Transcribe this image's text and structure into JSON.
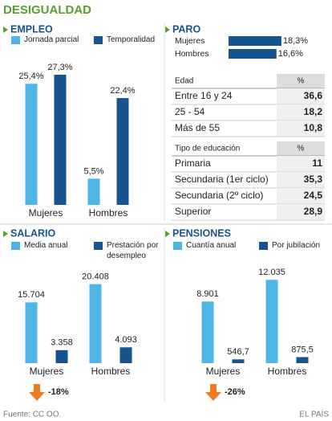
{
  "title": "DESIGUALDAD",
  "chart_data": [
    {
      "type": "bar",
      "title": "EMPLEO",
      "categories": [
        "Mujeres",
        "Hombres"
      ],
      "ylim": [
        0,
        30
      ],
      "series": [
        {
          "name": "Jornada parcial",
          "color": "#4db6e6",
          "values": [
            25.4,
            5.5
          ],
          "value_labels": [
            "25,4%",
            "5,5%"
          ]
        },
        {
          "name": "Temporalidad",
          "color": "#17538e",
          "values": [
            27.3,
            22.4
          ],
          "value_labels": [
            "27,3%",
            "22,4%"
          ]
        }
      ]
    },
    {
      "type": "hbar",
      "title": "PARO",
      "categories": [
        "Mujeres",
        "Hombres"
      ],
      "xlim": [
        0,
        20
      ],
      "color": "#17538e",
      "values": [
        18.3,
        16.6
      ],
      "value_labels": [
        "18,3%",
        "16,6%"
      ]
    },
    {
      "type": "bar",
      "title": "SALARIO",
      "categories": [
        "Mujeres",
        "Hombres"
      ],
      "ylim": [
        0,
        22000
      ],
      "annotation": "-18%",
      "series": [
        {
          "name": "Media anual",
          "color": "#4db6e6",
          "values": [
            15704,
            20408
          ],
          "value_labels": [
            "15.704",
            "20.408"
          ]
        },
        {
          "name": "Prestación por desempleo",
          "color": "#17538e",
          "values": [
            3358,
            4093
          ],
          "value_labels": [
            "3.358",
            "4.093"
          ]
        }
      ]
    },
    {
      "type": "bar",
      "title": "PENSIONES",
      "categories": [
        "Mujeres",
        "Hombres"
      ],
      "ylim": [
        0,
        13000
      ],
      "annotation": "-26%",
      "series": [
        {
          "name": "Cuantía anual",
          "color": "#4db6e6",
          "values": [
            8901,
            12035
          ],
          "value_labels": [
            "8.901",
            "12.035"
          ]
        },
        {
          "name": "Por jubilación",
          "color": "#17538e",
          "values": [
            546.7,
            875.5
          ],
          "value_labels": [
            "546,7",
            "875,5"
          ]
        }
      ]
    }
  ],
  "tables": [
    {
      "header": [
        "Edad",
        "%"
      ],
      "rows": [
        [
          "Entre 16 y 24",
          "36,6"
        ],
        [
          "25 - 54",
          "18,2"
        ],
        [
          "Más de 55",
          "10,8"
        ]
      ]
    },
    {
      "header": [
        "Tipo de educación",
        "%"
      ],
      "rows": [
        [
          "Primaria",
          "11"
        ],
        [
          "Secundaria (1er ciclo)",
          "35,3"
        ],
        [
          "Secundaria (2º ciclo)",
          "24,5"
        ],
        [
          "Superior",
          "28,9"
        ]
      ]
    }
  ],
  "footer": {
    "source": "Fuente: CC OO.",
    "brand": "EL PAÍS"
  }
}
